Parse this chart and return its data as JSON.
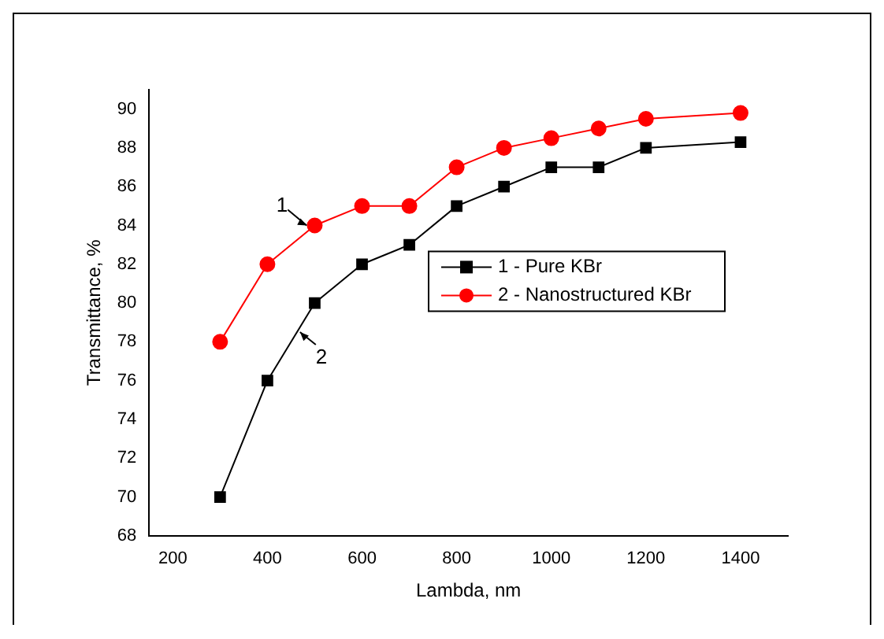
{
  "chart_data": {
    "type": "line",
    "xlabel": "Lambda, nm",
    "ylabel": "Transmittance, %",
    "xlim": [
      150,
      1500
    ],
    "xticks": [
      200,
      400,
      600,
      800,
      1000,
      1200,
      1400
    ],
    "ylim": [
      68,
      91
    ],
    "yticks": [
      68,
      70,
      72,
      74,
      76,
      78,
      80,
      82,
      84,
      86,
      88,
      90
    ],
    "x": [
      300,
      400,
      500,
      600,
      700,
      800,
      900,
      1000,
      1100,
      1200,
      1400
    ],
    "series": [
      {
        "name": "1 - Pure KBr",
        "color": "#000000",
        "marker": "square",
        "values": [
          70,
          76,
          80,
          82,
          83,
          85,
          86,
          87,
          87,
          88,
          88.3
        ]
      },
      {
        "name": "2 - Nanostructured KBr",
        "color": "#ff0000",
        "marker": "circle",
        "values": [
          78,
          82,
          84,
          85,
          85,
          87,
          88,
          88.5,
          89,
          89.5,
          89.8
        ]
      }
    ],
    "annotations": [
      {
        "text": "1",
        "x": 483,
        "y": 84
      },
      {
        "text": "2",
        "x": 469,
        "y": 78.5
      }
    ],
    "legend": "right",
    "grid": false
  }
}
